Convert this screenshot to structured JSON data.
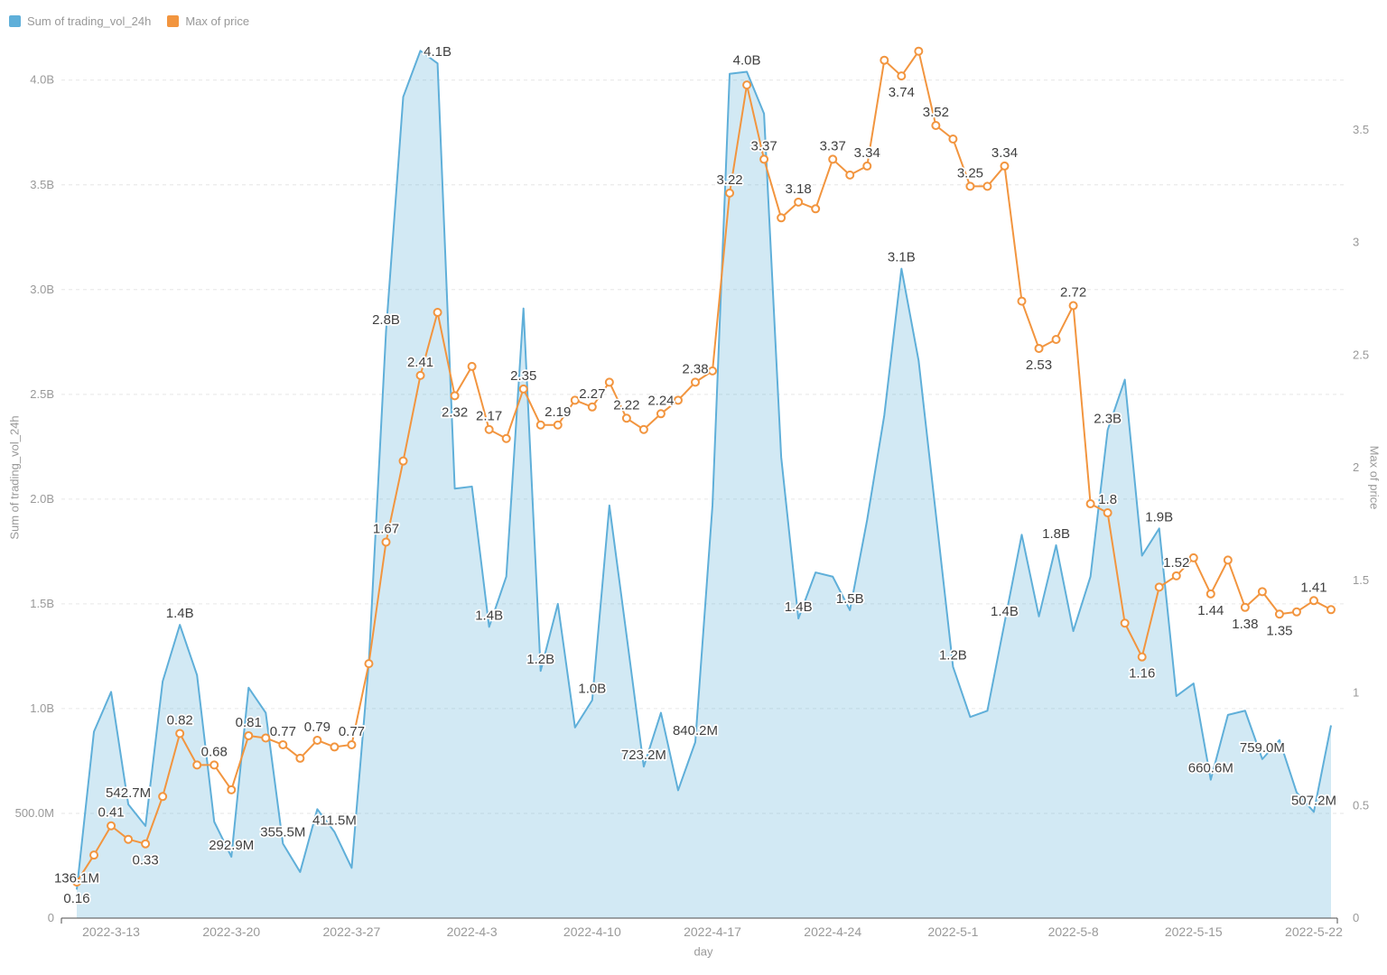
{
  "legend": {
    "items": [
      {
        "label": "Sum of trading_vol_24h",
        "color": "#5FAFD9"
      },
      {
        "label": "Max of price",
        "color": "#F2953F"
      }
    ]
  },
  "axes": {
    "left": {
      "title": "Sum of trading_vol_24h",
      "ticks": [
        "0",
        "500.0M",
        "1.0B",
        "1.5B",
        "2.0B",
        "2.5B",
        "3.0B",
        "3.5B",
        "4.0B"
      ]
    },
    "right": {
      "title": "Max of price",
      "ticks": [
        "0",
        "0.5",
        "1",
        "1.5",
        "2",
        "2.5",
        "3",
        "3.5"
      ]
    },
    "x": {
      "title": "day",
      "ticks": [
        "2022-3-13",
        "2022-3-20",
        "2022-3-27",
        "2022-4-3",
        "2022-4-10",
        "2022-4-17",
        "2022-4-24",
        "2022-5-1",
        "2022-5-8",
        "2022-5-15",
        "2022-5-22"
      ]
    }
  },
  "colors": {
    "volume_line": "#5FAFD9",
    "volume_area": "rgba(95,175,217,0.28)",
    "price_line": "#F2953F",
    "marker_fill": "#FFFFFF",
    "grid": "#E6E6E6",
    "axis_line": "#4D4D4D",
    "tick_text": "#999999",
    "label_text": "#404040"
  },
  "chart_data": {
    "type": "line",
    "title": "",
    "xlabel": "day",
    "ylabel_left": "Sum of trading_vol_24h",
    "ylabel_right": "Max of price",
    "grid": true,
    "legend_position": "top-left",
    "ylim_left": [
      0,
      4.21
    ],
    "ylim_right": [
      0,
      3.917
    ],
    "x": [
      "2022-3-11",
      "2022-3-12",
      "2022-3-13",
      "2022-3-14",
      "2022-3-15",
      "2022-3-16",
      "2022-3-17",
      "2022-3-18",
      "2022-3-19",
      "2022-3-20",
      "2022-3-21",
      "2022-3-22",
      "2022-3-23",
      "2022-3-24",
      "2022-3-25",
      "2022-3-26",
      "2022-3-27",
      "2022-3-28",
      "2022-3-29",
      "2022-3-30",
      "2022-3-31",
      "2022-4-1",
      "2022-4-2",
      "2022-4-3",
      "2022-4-4",
      "2022-4-5",
      "2022-4-6",
      "2022-4-7",
      "2022-4-8",
      "2022-4-9",
      "2022-4-10",
      "2022-4-11",
      "2022-4-12",
      "2022-4-13",
      "2022-4-14",
      "2022-4-15",
      "2022-4-16",
      "2022-4-17",
      "2022-4-18",
      "2022-4-19",
      "2022-4-20",
      "2022-4-21",
      "2022-4-22",
      "2022-4-23",
      "2022-4-24",
      "2022-4-25",
      "2022-4-26",
      "2022-4-27",
      "2022-4-28",
      "2022-4-29",
      "2022-4-30",
      "2022-5-1",
      "2022-5-2",
      "2022-5-3",
      "2022-5-4",
      "2022-5-5",
      "2022-5-6",
      "2022-5-7",
      "2022-5-8",
      "2022-5-9",
      "2022-5-10",
      "2022-5-11",
      "2022-5-12",
      "2022-5-13",
      "2022-5-14",
      "2022-5-15",
      "2022-5-16",
      "2022-5-17",
      "2022-5-18",
      "2022-5-19",
      "2022-5-20",
      "2022-5-21",
      "2022-5-22",
      "2022-5-23"
    ],
    "series": [
      {
        "name": "Sum of trading_vol_24h",
        "style": "area",
        "axis": "left",
        "unit": "billions",
        "values": [
          0.1361,
          0.89,
          1.08,
          0.5427,
          0.44,
          1.13,
          1.4,
          1.16,
          0.46,
          0.2929,
          1.1,
          0.98,
          0.3555,
          0.22,
          0.52,
          0.4115,
          0.24,
          1.22,
          2.8,
          3.92,
          4.14,
          4.08,
          2.05,
          2.06,
          1.39,
          1.63,
          2.91,
          1.18,
          1.5,
          0.91,
          1.04,
          1.97,
          1.35,
          0.7232,
          0.98,
          0.61,
          0.8402,
          1.97,
          4.03,
          4.04,
          3.84,
          2.2,
          1.43,
          1.65,
          1.63,
          1.47,
          1.9,
          2.4,
          3.1,
          2.66,
          1.93,
          1.2,
          0.96,
          0.99,
          1.41,
          1.83,
          1.44,
          1.78,
          1.37,
          1.63,
          2.33,
          2.57,
          1.73,
          1.86,
          1.06,
          1.12,
          0.6606,
          0.97,
          0.99,
          0.759,
          0.85,
          0.6,
          0.5072,
          0.92
        ],
        "labels": [
          {
            "i": 0,
            "t": "136.1M"
          },
          {
            "i": 3,
            "t": "542.7M"
          },
          {
            "i": 6,
            "t": "1.4B"
          },
          {
            "i": 9,
            "t": "292.9M"
          },
          {
            "i": 12,
            "t": "355.5M"
          },
          {
            "i": 15,
            "t": "411.5M"
          },
          {
            "i": 18,
            "t": "2.8B"
          },
          {
            "i": 21,
            "t": "4.1B"
          },
          {
            "i": 24,
            "t": "1.4B"
          },
          {
            "i": 27,
            "t": "1.2B"
          },
          {
            "i": 30,
            "t": "1.0B"
          },
          {
            "i": 33,
            "t": "723.2M"
          },
          {
            "i": 36,
            "t": "840.2M"
          },
          {
            "i": 39,
            "t": "4.0B"
          },
          {
            "i": 42,
            "t": "1.4B"
          },
          {
            "i": 45,
            "t": "1.5B"
          },
          {
            "i": 48,
            "t": "3.1B"
          },
          {
            "i": 51,
            "t": "1.2B"
          },
          {
            "i": 54,
            "t": "1.4B"
          },
          {
            "i": 57,
            "t": "1.8B"
          },
          {
            "i": 60,
            "t": "2.3B"
          },
          {
            "i": 63,
            "t": "1.9B"
          },
          {
            "i": 66,
            "t": "660.6M"
          },
          {
            "i": 69,
            "t": "759.0M"
          },
          {
            "i": 72,
            "t": "507.2M"
          }
        ]
      },
      {
        "name": "Max of price",
        "style": "line-markers",
        "axis": "right",
        "values": [
          0.16,
          0.28,
          0.41,
          0.35,
          0.33,
          0.54,
          0.82,
          0.68,
          0.68,
          0.57,
          0.81,
          0.8,
          0.77,
          0.71,
          0.79,
          0.76,
          0.77,
          1.13,
          1.67,
          2.03,
          2.41,
          2.69,
          2.32,
          2.45,
          2.17,
          2.13,
          2.35,
          2.19,
          2.19,
          2.3,
          2.27,
          2.38,
          2.22,
          2.17,
          2.24,
          2.3,
          2.38,
          2.43,
          3.22,
          3.7,
          3.37,
          3.11,
          3.18,
          3.15,
          3.37,
          3.3,
          3.34,
          3.81,
          3.74,
          3.85,
          3.52,
          3.46,
          3.25,
          3.25,
          3.34,
          2.74,
          2.53,
          2.57,
          2.72,
          1.84,
          1.8,
          1.31,
          1.16,
          1.47,
          1.52,
          1.6,
          1.44,
          1.59,
          1.38,
          1.45,
          1.35,
          1.36,
          1.41,
          1.37
        ],
        "labels": [
          {
            "i": 0,
            "t": "0.16",
            "s": "b"
          },
          {
            "i": 2,
            "t": "0.41"
          },
          {
            "i": 4,
            "t": "0.33",
            "s": "b"
          },
          {
            "i": 6,
            "t": "0.82"
          },
          {
            "i": 8,
            "t": "0.68"
          },
          {
            "i": 10,
            "t": "0.81"
          },
          {
            "i": 12,
            "t": "0.77"
          },
          {
            "i": 14,
            "t": "0.79"
          },
          {
            "i": 16,
            "t": "0.77"
          },
          {
            "i": 18,
            "t": "1.67"
          },
          {
            "i": 20,
            "t": "2.41"
          },
          {
            "i": 22,
            "t": "2.32",
            "s": "b"
          },
          {
            "i": 24,
            "t": "2.17"
          },
          {
            "i": 26,
            "t": "2.35"
          },
          {
            "i": 28,
            "t": "2.19"
          },
          {
            "i": 30,
            "t": "2.27"
          },
          {
            "i": 32,
            "t": "2.22"
          },
          {
            "i": 34,
            "t": "2.24"
          },
          {
            "i": 36,
            "t": "2.38"
          },
          {
            "i": 38,
            "t": "3.22"
          },
          {
            "i": 40,
            "t": "3.37"
          },
          {
            "i": 42,
            "t": "3.18"
          },
          {
            "i": 44,
            "t": "3.37"
          },
          {
            "i": 46,
            "t": "3.34"
          },
          {
            "i": 48,
            "t": "3.74",
            "s": "b"
          },
          {
            "i": 50,
            "t": "3.52"
          },
          {
            "i": 52,
            "t": "3.25"
          },
          {
            "i": 54,
            "t": "3.34"
          },
          {
            "i": 56,
            "t": "2.53",
            "s": "b"
          },
          {
            "i": 58,
            "t": "2.72"
          },
          {
            "i": 60,
            "t": "1.8"
          },
          {
            "i": 62,
            "t": "1.16",
            "s": "b"
          },
          {
            "i": 64,
            "t": "1.52"
          },
          {
            "i": 66,
            "t": "1.44",
            "s": "b"
          },
          {
            "i": 68,
            "t": "1.38",
            "s": "b"
          },
          {
            "i": 70,
            "t": "1.35",
            "s": "b"
          },
          {
            "i": 72,
            "t": "1.41"
          }
        ]
      }
    ]
  }
}
